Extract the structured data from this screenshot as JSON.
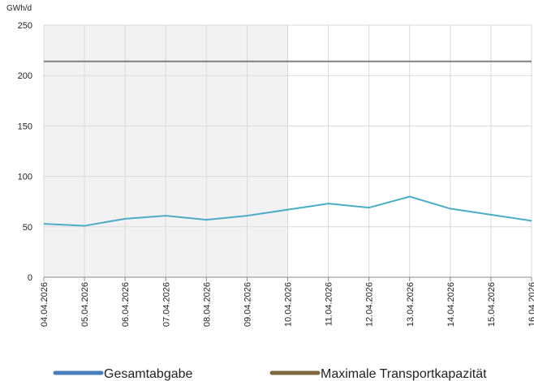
{
  "chart_data": {
    "type": "line",
    "y_unit": "GWh/d",
    "categories": [
      "04.04.2026",
      "05.04.2026",
      "06.04.2026",
      "07.04.2026",
      "08.04.2026",
      "09.04.2026",
      "10.04.2026",
      "11.04.2026",
      "12.04.2026",
      "13.04.2026",
      "14.04.2026",
      "15.04.2026",
      "16.04.2026"
    ],
    "series": [
      {
        "name": "Gesamtabgabe",
        "color": "#4bacc6",
        "legend_color": "#4a7ebb",
        "values": [
          53,
          51,
          58,
          61,
          57,
          61,
          67,
          73,
          69,
          80,
          68,
          62,
          56
        ]
      },
      {
        "name": "Maximale Transportkapazität",
        "color": "#808080",
        "legend_color": "#7f6a3f",
        "values": [
          214,
          214,
          214,
          214,
          214,
          214,
          214,
          214,
          214,
          214,
          214,
          214,
          214
        ]
      }
    ],
    "ylim": [
      0,
      250
    ],
    "yticks": [
      0,
      50,
      100,
      150,
      200,
      250
    ],
    "grid": true,
    "shaded_range": [
      "04.04.2026",
      "10.04.2026"
    ],
    "shade_color": "#f2f2f2",
    "legend": "bottom"
  }
}
